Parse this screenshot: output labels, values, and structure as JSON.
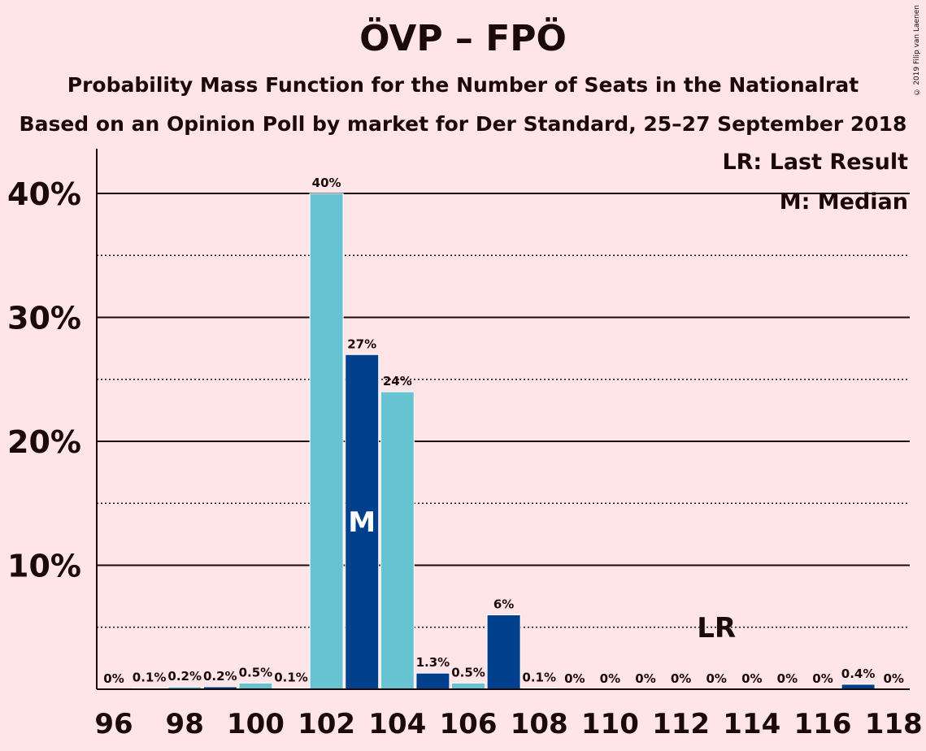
{
  "title": "ÖVP – FPÖ",
  "subtitle1": "Probability Mass Function for the Number of Seats in the Nationalrat",
  "subtitle2": "Based on an Opinion Poll by market for Der Standard, 25–27 September 2018",
  "copyright": "© 2019 Filip van Laenen",
  "legend": {
    "lr": "LR: Last Result",
    "m": "M: Median"
  },
  "markers": {
    "median_label": "M",
    "median_seat": 103,
    "lr_label": "LR",
    "lr_seat": 113
  },
  "colors": {
    "background": "#FFE4E8",
    "light_bar": "#67C3D2",
    "dark_bar": "#00408C",
    "text": "#1a0a0a"
  },
  "chart_data": {
    "type": "bar",
    "x": [
      96,
      97,
      98,
      99,
      100,
      101,
      102,
      103,
      104,
      105,
      106,
      107,
      108,
      109,
      110,
      111,
      112,
      113,
      114,
      115,
      116,
      117,
      118
    ],
    "values": [
      0,
      0.1,
      0.2,
      0.2,
      0.5,
      0.1,
      40,
      27,
      24,
      1.3,
      0.5,
      6,
      0.1,
      0,
      0,
      0,
      0,
      0,
      0,
      0,
      0,
      0.4,
      0
    ],
    "labels": [
      "0%",
      "0.1%",
      "0.2%",
      "0.2%",
      "0.5%",
      "0.1%",
      "40%",
      "27%",
      "24%",
      "1.3%",
      "0.5%",
      "6%",
      "0.1%",
      "0%",
      "0%",
      "0%",
      "0%",
      "0%",
      "0%",
      "0%",
      "0%",
      "0.4%",
      "0%"
    ],
    "y_ticks": [
      {
        "value": 10,
        "label": "10%"
      },
      {
        "value": 20,
        "label": "20%"
      },
      {
        "value": 30,
        "label": "30%"
      },
      {
        "value": 40,
        "label": "40%"
      }
    ],
    "x_ticks": [
      96,
      98,
      100,
      102,
      104,
      106,
      108,
      110,
      112,
      114,
      116,
      118
    ],
    "ylim": [
      0,
      43
    ],
    "grid": true,
    "legend_position": "top-right"
  }
}
